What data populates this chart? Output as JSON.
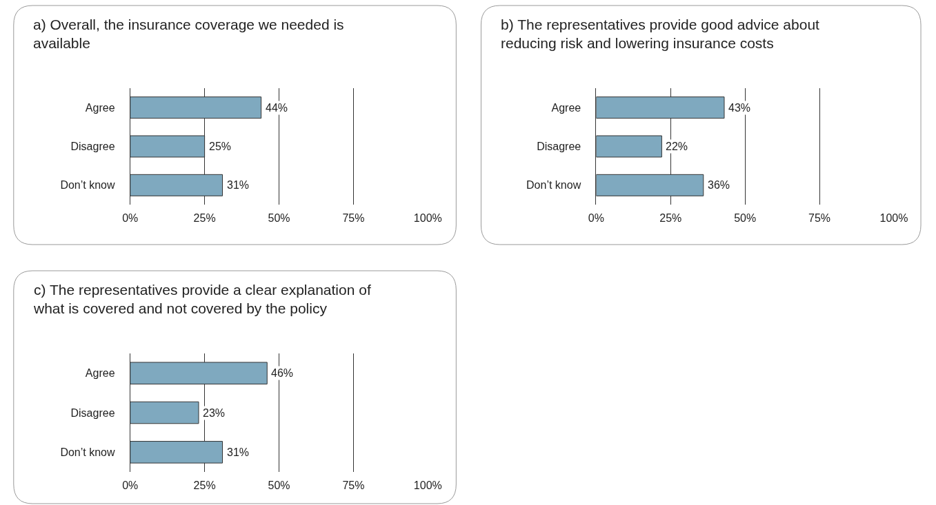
{
  "chart_data": [
    {
      "type": "bar",
      "orientation": "horizontal",
      "title": "a) Overall, the insurance coverage we needed is available",
      "categories": [
        "Agree",
        "Disagree",
        "Don’t know"
      ],
      "values": [
        44,
        25,
        31
      ],
      "value_labels": [
        "44%",
        "25%",
        "31%"
      ],
      "color": "#7fa9bf",
      "xlim": [
        0,
        100
      ],
      "xticks": [
        {
          "value": 0,
          "label": "0%"
        },
        {
          "value": 25,
          "label": "25%"
        },
        {
          "value": 50,
          "label": "50%"
        },
        {
          "value": 75,
          "label": "75%"
        },
        {
          "value": 100,
          "label": "100%"
        }
      ],
      "grid": "x"
    },
    {
      "type": "bar",
      "orientation": "horizontal",
      "title": "b) The representatives provide good advice about reducing risk and lowering insurance costs",
      "categories": [
        "Agree",
        "Disagree",
        "Don’t know"
      ],
      "values": [
        43,
        22,
        36
      ],
      "value_labels": [
        "43%",
        "22%",
        "36%"
      ],
      "color": "#7fa9bf",
      "xlim": [
        0,
        100
      ],
      "xticks": [
        {
          "value": 0,
          "label": "0%"
        },
        {
          "value": 25,
          "label": "25%"
        },
        {
          "value": 50,
          "label": "50%"
        },
        {
          "value": 75,
          "label": "75%"
        },
        {
          "value": 100,
          "label": "100%"
        }
      ],
      "grid": "x"
    },
    {
      "type": "bar",
      "orientation": "horizontal",
      "title": "c) The representatives provide a clear explanation of what is covered and not covered by the policy",
      "categories": [
        "Agree",
        "Disagree",
        "Don’t know"
      ],
      "values": [
        46,
        23,
        31
      ],
      "value_labels": [
        "46%",
        "23%",
        "31%"
      ],
      "color": "#7fa9bf",
      "xlim": [
        0,
        100
      ],
      "xticks": [
        {
          "value": 0,
          "label": "0%"
        },
        {
          "value": 25,
          "label": "25%"
        },
        {
          "value": 50,
          "label": "50%"
        },
        {
          "value": 75,
          "label": "75%"
        },
        {
          "value": 100,
          "label": "100%"
        }
      ],
      "grid": "x"
    }
  ]
}
